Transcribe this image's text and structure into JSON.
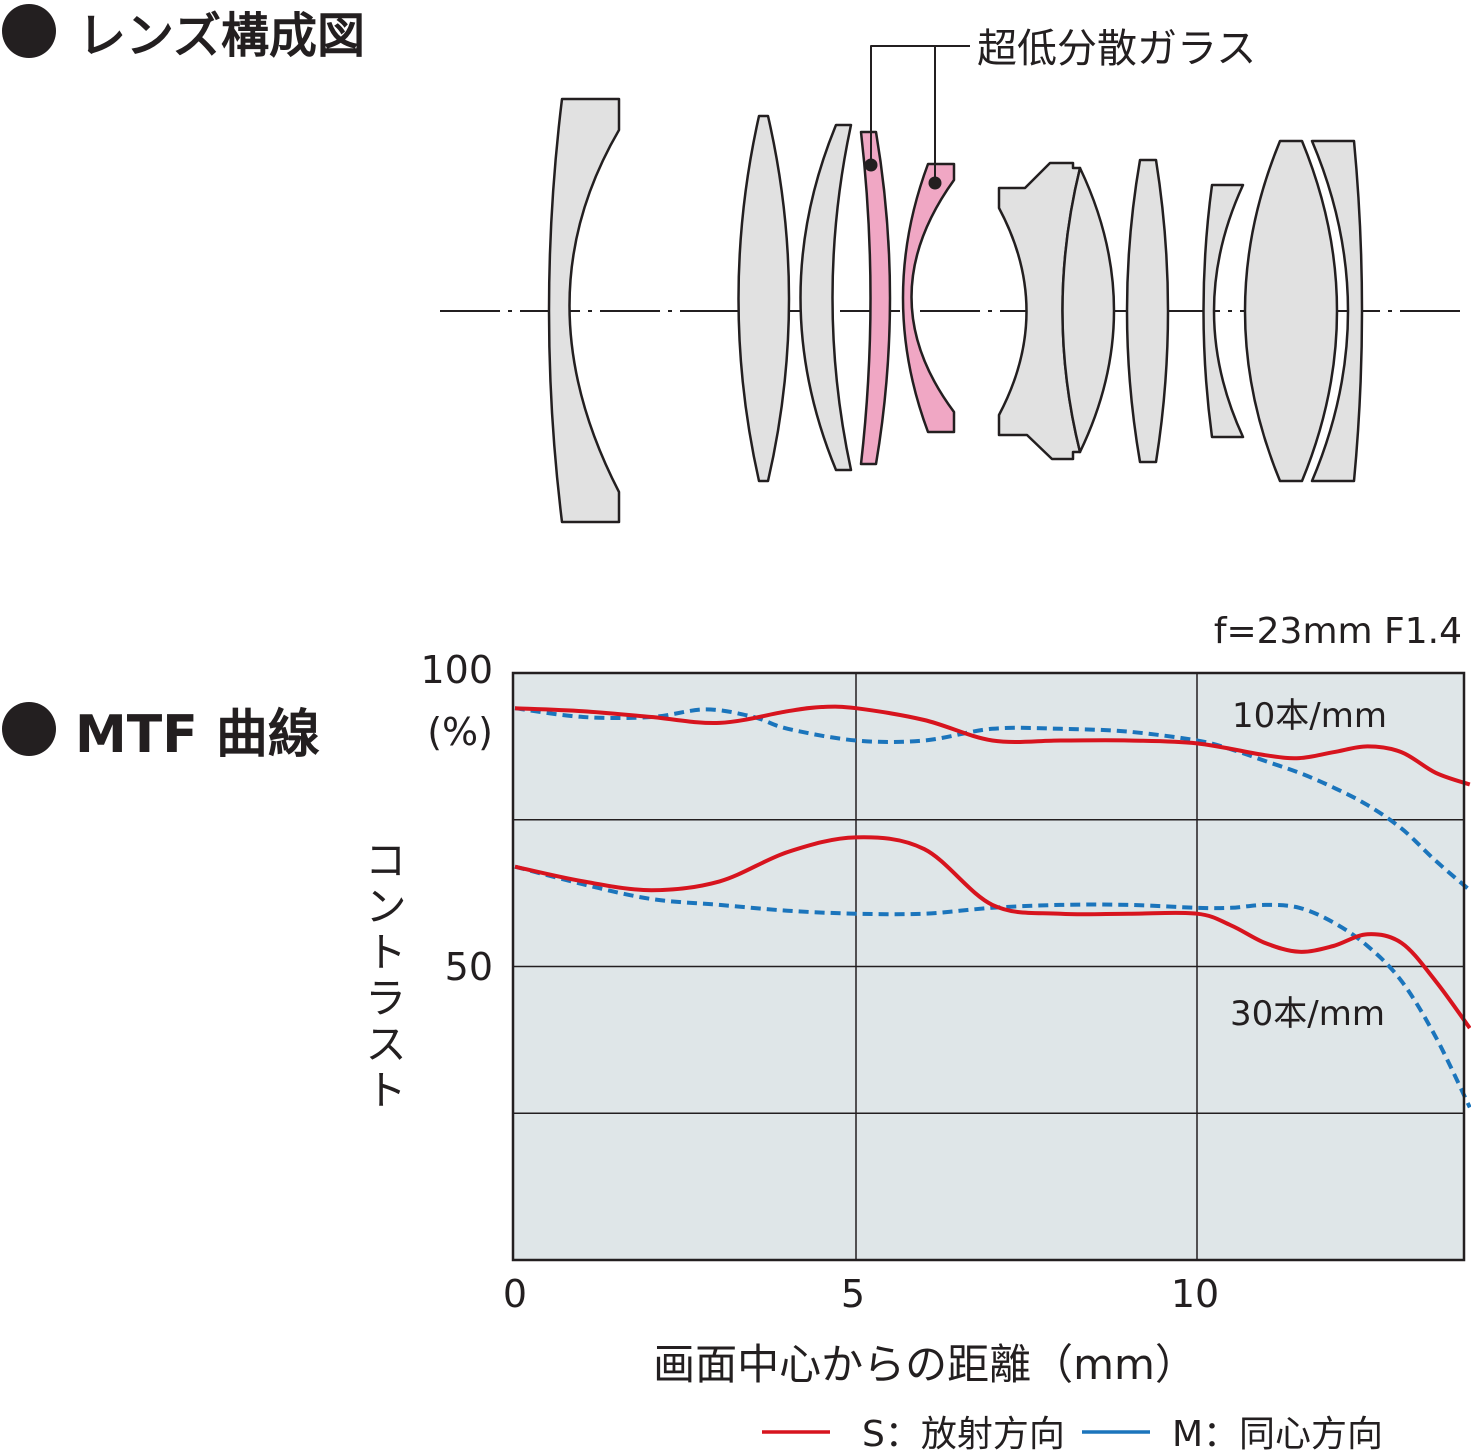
{
  "sections": {
    "lens_heading": "レンズ構成図",
    "mtf_heading": "MTF 曲線"
  },
  "lens_diagram": {
    "callout_label": "超低分散ガラス",
    "element_count": 12,
    "highlight_color": "#f0a7c4",
    "element_color": "#e1e1e1"
  },
  "chart_data": {
    "type": "line",
    "title": "f=23mm F1.4",
    "xlabel": "画面中心からの距離（mm）",
    "ylabel": "コントラスト",
    "y_unit": "(%)",
    "xlim": [
      0,
      14
    ],
    "ylim": [
      0,
      100
    ],
    "x_ticks": [
      "0",
      "5",
      "10"
    ],
    "y_ticks": [
      "100",
      "50"
    ],
    "grid": true,
    "background_color": "#dfe6e8",
    "annotations": [
      "10本/mm",
      "30本/mm"
    ],
    "legend": {
      "placement": "bottom",
      "entries": [
        {
          "label": "S：放射方向",
          "color": "#d7141e",
          "style": "solid"
        },
        {
          "label": "M：同心方向",
          "color": "#1b75bc",
          "style": "solid"
        }
      ]
    },
    "series": [
      {
        "frequency": "10本/mm",
        "direction": "S",
        "color": "#d7141e",
        "dash": "solid",
        "x": [
          0,
          1,
          2,
          3,
          4,
          4.5,
          5,
          6,
          7,
          8,
          9,
          10,
          11,
          11.5,
          12,
          12.5,
          13,
          13.5,
          14
        ],
        "y": [
          94,
          93.5,
          92.5,
          91.5,
          93.5,
          94.2,
          94,
          92,
          88.5,
          88.5,
          88.5,
          88,
          86,
          85.5,
          86.5,
          87.5,
          86.5,
          83,
          81
        ]
      },
      {
        "frequency": "10本/mm",
        "direction": "M",
        "color": "#1b75bc",
        "dash": "dashed",
        "x": [
          0,
          1,
          2,
          2.8,
          3.5,
          4,
          5,
          6,
          7,
          8,
          9,
          10,
          10.5,
          11,
          11.5,
          12,
          12.5,
          13,
          13.5,
          14
        ],
        "y": [
          94,
          92.5,
          92.5,
          93.8,
          92.5,
          90.5,
          88.5,
          88.5,
          90.5,
          90.5,
          90,
          88.5,
          87,
          85,
          83,
          80.5,
          77.5,
          73.5,
          68,
          63
        ]
      },
      {
        "frequency": "30本/mm",
        "direction": "S",
        "color": "#d7141e",
        "dash": "solid",
        "x": [
          0,
          1,
          2,
          3,
          4,
          5,
          6,
          7,
          8,
          9,
          10,
          10.5,
          11,
          11.5,
          12,
          12.5,
          13,
          13.5,
          14
        ],
        "y": [
          67,
          64.5,
          63,
          64.5,
          69.5,
          72,
          70,
          60.5,
          59,
          59,
          59,
          57,
          54,
          52.5,
          53.5,
          55.5,
          54,
          47.5,
          39.5
        ]
      },
      {
        "frequency": "30本/mm",
        "direction": "M",
        "color": "#1b75bc",
        "dash": "dashed",
        "x": [
          0,
          1,
          2,
          3,
          4,
          5,
          6,
          7,
          8,
          9,
          10,
          10.5,
          11,
          11.5,
          12,
          12.5,
          13,
          13.5,
          14
        ],
        "y": [
          67,
          64,
          61.5,
          60.5,
          59.5,
          59,
          59,
          60,
          60.5,
          60.5,
          60,
          60,
          60.5,
          60,
          57.5,
          53.5,
          47.5,
          38,
          26
        ]
      }
    ]
  }
}
